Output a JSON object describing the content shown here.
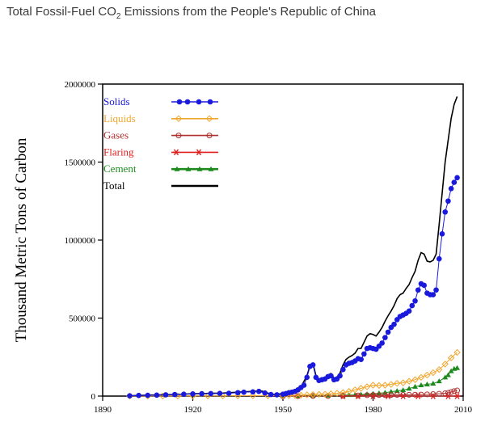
{
  "chart_data": {
    "type": "line",
    "title_pre": "Total Fossil-Fuel CO",
    "title_sub": "2",
    "title_post": " Emissions from the People's Republic of China",
    "ylabel": "Thousand Metric Tons of Carbon",
    "xlabel": "",
    "xlim": [
      1890,
      2010
    ],
    "ylim": [
      0,
      2000000
    ],
    "xticks": [
      1890,
      1920,
      1950,
      1980,
      2010
    ],
    "yticks": [
      0,
      500000,
      1000000,
      1500000,
      2000000
    ],
    "grid": false,
    "legend_position": "top-left",
    "series": [
      {
        "name": "Solids",
        "color": "#1a1add",
        "marker": "filled-circle",
        "x": [
          1899,
          1902,
          1905,
          1908,
          1911,
          1914,
          1917,
          1920,
          1923,
          1926,
          1929,
          1932,
          1935,
          1937,
          1940,
          1942,
          1944,
          1946,
          1948,
          1950,
          1951,
          1952,
          1953,
          1954,
          1955,
          1956,
          1957,
          1958,
          1959,
          1960,
          1961,
          1962,
          1963,
          1964,
          1965,
          1966,
          1967,
          1968,
          1969,
          1970,
          1971,
          1972,
          1973,
          1974,
          1975,
          1976,
          1977,
          1978,
          1979,
          1980,
          1981,
          1982,
          1983,
          1984,
          1985,
          1986,
          1987,
          1988,
          1989,
          1990,
          1991,
          1992,
          1993,
          1994,
          1995,
          1996,
          1997,
          1998,
          1999,
          2000,
          2001,
          2002,
          2003,
          2004,
          2005,
          2006,
          2007,
          2008
        ],
        "values": [
          2000,
          4000,
          5000,
          6000,
          8000,
          10000,
          12000,
          14000,
          15000,
          16000,
          17000,
          18000,
          22000,
          25000,
          27000,
          30000,
          20000,
          10000,
          8000,
          12000,
          16000,
          22000,
          25000,
          30000,
          40000,
          55000,
          70000,
          120000,
          190000,
          200000,
          120000,
          100000,
          105000,
          110000,
          125000,
          130000,
          105000,
          110000,
          130000,
          170000,
          200000,
          210000,
          215000,
          225000,
          240000,
          235000,
          270000,
          305000,
          310000,
          305000,
          300000,
          320000,
          340000,
          375000,
          410000,
          440000,
          460000,
          490000,
          510000,
          520000,
          530000,
          545000,
          580000,
          610000,
          680000,
          720000,
          710000,
          660000,
          650000,
          650000,
          680000,
          880000,
          1040000,
          1180000,
          1250000,
          1330000,
          1370000,
          1400000
        ]
      },
      {
        "name": "Liquids",
        "color": "#f2a52b",
        "marker": "open-diamond",
        "x": [
          1899,
          1905,
          1910,
          1915,
          1920,
          1925,
          1930,
          1935,
          1940,
          1945,
          1950,
          1952,
          1954,
          1956,
          1958,
          1960,
          1962,
          1964,
          1966,
          1968,
          1970,
          1972,
          1974,
          1976,
          1978,
          1980,
          1982,
          1984,
          1986,
          1988,
          1990,
          1992,
          1994,
          1996,
          1998,
          2000,
          2002,
          2004,
          2006,
          2008
        ],
        "values": [
          200,
          400,
          600,
          800,
          1000,
          1200,
          1500,
          2000,
          2500,
          2000,
          3000,
          4000,
          5000,
          6000,
          8000,
          10000,
          11000,
          12000,
          15000,
          18000,
          22000,
          30000,
          40000,
          50000,
          60000,
          70000,
          68000,
          70000,
          75000,
          82000,
          85000,
          95000,
          105000,
          120000,
          135000,
          150000,
          170000,
          205000,
          245000,
          280000
        ]
      },
      {
        "name": "Gases",
        "color": "#b03030",
        "marker": "open-circle",
        "x": [
          1950,
          1955,
          1960,
          1965,
          1970,
          1975,
          1978,
          1980,
          1982,
          1984,
          1986,
          1988,
          1990,
          1992,
          1994,
          1996,
          1998,
          2000,
          2002,
          2004,
          2005,
          2006,
          2007,
          2008
        ],
        "values": [
          0,
          0,
          500,
          800,
          2000,
          4000,
          6000,
          7000,
          6500,
          6500,
          7000,
          7500,
          8000,
          8500,
          9000,
          10000,
          11000,
          13000,
          15000,
          18000,
          21000,
          26000,
          32000,
          36000
        ]
      },
      {
        "name": "Flaring",
        "color": "#e02020",
        "marker": "asterisk",
        "x": [
          1970,
          1975,
          1980,
          1985,
          1990,
          1995,
          2000,
          2005,
          2008
        ],
        "values": [
          0,
          0,
          0,
          0,
          0,
          0,
          0,
          0,
          0
        ]
      },
      {
        "name": "Cement",
        "color": "#1e8a1e",
        "marker": "filled-triangle",
        "x": [
          1950,
          1955,
          1960,
          1965,
          1970,
          1972,
          1974,
          1976,
          1978,
          1980,
          1982,
          1984,
          1986,
          1988,
          1990,
          1992,
          1994,
          1996,
          1998,
          2000,
          2002,
          2004,
          2005,
          2006,
          2007,
          2008
        ],
        "values": [
          500,
          1000,
          3000,
          4000,
          6000,
          7000,
          8000,
          10000,
          12000,
          15000,
          18000,
          22000,
          28000,
          33000,
          38000,
          48000,
          60000,
          70000,
          75000,
          80000,
          95000,
          120000,
          135000,
          160000,
          175000,
          180000
        ]
      },
      {
        "name": "Total",
        "color": "#000000",
        "marker": "none",
        "x": [
          1899,
          1905,
          1910,
          1915,
          1920,
          1925,
          1930,
          1935,
          1940,
          1943,
          1946,
          1948,
          1950,
          1952,
          1954,
          1956,
          1958,
          1959,
          1960,
          1961,
          1962,
          1963,
          1964,
          1965,
          1966,
          1967,
          1968,
          1969,
          1970,
          1971,
          1972,
          1973,
          1974,
          1975,
          1976,
          1977,
          1978,
          1979,
          1980,
          1981,
          1982,
          1983,
          1984,
          1985,
          1986,
          1987,
          1988,
          1989,
          1990,
          1991,
          1992,
          1993,
          1994,
          1995,
          1996,
          1997,
          1998,
          1999,
          2000,
          2001,
          2002,
          2003,
          2004,
          2005,
          2006,
          2007,
          2008
        ],
        "values": [
          2000,
          6000,
          8000,
          11000,
          15000,
          17000,
          19000,
          25000,
          30000,
          32000,
          12000,
          10000,
          18000,
          28000,
          40000,
          58000,
          130000,
          195000,
          210000,
          130000,
          108000,
          112000,
          118000,
          135000,
          145000,
          115000,
          122000,
          148000,
          200000,
          235000,
          250000,
          260000,
          275000,
          305000,
          305000,
          345000,
          385000,
          400000,
          395000,
          385000,
          410000,
          440000,
          480000,
          515000,
          545000,
          580000,
          625000,
          650000,
          660000,
          690000,
          715000,
          760000,
          800000,
          870000,
          920000,
          910000,
          865000,
          860000,
          870000,
          910000,
          1100000,
          1300000,
          1500000,
          1640000,
          1780000,
          1870000,
          1920000
        ]
      }
    ]
  }
}
